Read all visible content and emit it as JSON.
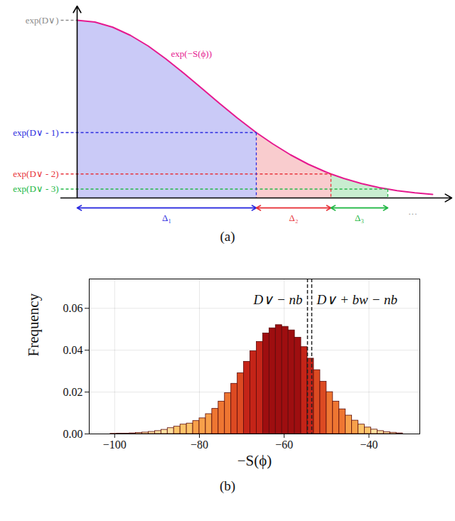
{
  "chart_data": [
    {
      "type": "area",
      "caption": "(a)",
      "annotations": [
        "exp(−S(ϕ))",
        "···"
      ],
      "x": [
        0,
        0.25,
        0.5,
        0.75,
        1,
        1.25,
        1.5,
        1.75,
        2,
        2.25,
        2.5,
        2.52,
        2.75,
        3,
        3.25,
        3.5,
        3.57,
        3.75,
        4,
        4.25,
        4.37,
        4.5,
        4.75,
        5
      ],
      "values": [
        1,
        0.99,
        0.961,
        0.915,
        0.855,
        0.782,
        0.702,
        0.618,
        0.533,
        0.451,
        0.374,
        0.368,
        0.305,
        0.243,
        0.19,
        0.146,
        0.135,
        0.11,
        0.081,
        0.058,
        0.05,
        0.041,
        0.029,
        0.02
      ],
      "color": "#e6198f",
      "xlim": [
        -0.23,
        5.27
      ],
      "ylim": [
        0,
        1.08
      ],
      "yticks": [
        {
          "value": 1,
          "label": "exp(D∨)"
        },
        {
          "value": 0.368,
          "label": "exp(D∨ - 1)"
        },
        {
          "value": 0.135,
          "label": "exp(D∨ - 2)"
        },
        {
          "value": 0.05,
          "label": "exp(D∨ - 3)"
        }
      ],
      "colors": [
        "#8c8c8c",
        "#2b2be0",
        "#e8333a",
        "#22b845"
      ],
      "regions": [
        {
          "name": "Δ₁",
          "from": 0,
          "to": 2.52,
          "color": "#2b2be0"
        },
        {
          "name": "Δ₂",
          "from": 2.52,
          "to": 3.57,
          "color": "#e8333a"
        },
        {
          "name": "Δ₃",
          "from": 3.57,
          "to": 4.37,
          "color": "#22b845"
        }
      ],
      "tick_labels": "y",
      "grid": false
    },
    {
      "type": "histogram",
      "caption": "(b)",
      "xlabel": "−S(ϕ)",
      "ylabel": "Frequency",
      "bins": [
        -101,
        -99.5,
        -98,
        -96.5,
        -95,
        -93.5,
        -92,
        -90.5,
        -89,
        -87.5,
        -86,
        -84.5,
        -83,
        -81.5,
        -80,
        -78.5,
        -77,
        -75.5,
        -74,
        -72.5,
        -71,
        -69.5,
        -68,
        -66.5,
        -65,
        -63.5,
        -62,
        -60.5,
        -59,
        -57.5,
        -56,
        -54.5,
        -53,
        -51.5,
        -50,
        -48.5,
        -47,
        -45.5,
        -44,
        -42.5,
        -41,
        -39.5,
        -38,
        -36.5,
        -35,
        -33.5,
        -32
      ],
      "values": [
        0.0001,
        0.0002,
        0.0002,
        0.0003,
        0.0005,
        0.0007,
        0.001,
        0.0014,
        0.002,
        0.0028,
        0.0035,
        0.0045,
        0.005,
        0.0062,
        0.0075,
        0.0095,
        0.012,
        0.0155,
        0.0195,
        0.024,
        0.029,
        0.0345,
        0.0395,
        0.044,
        0.048,
        0.0505,
        0.052,
        0.0512,
        0.0495,
        0.046,
        0.0415,
        0.036,
        0.0305,
        0.025,
        0.02,
        0.0155,
        0.0118,
        0.0088,
        0.0064,
        0.0045,
        0.0031,
        0.0021,
        0.0014,
        0.0009,
        0.0006,
        0.0003
      ],
      "colors": [
        "#fde0a0",
        "#fde0a0",
        "#fde0a0",
        "#fde0a0",
        "#fde0a0",
        "#fde0a0",
        "#fde0a0",
        "#fde0a0",
        "#fde0a0",
        "#fde0a0",
        "#fcc46a",
        "#fcc46a",
        "#fcc46a",
        "#f7a04a",
        "#f7a04a",
        "#f7a04a",
        "#ee7632",
        "#ee7632",
        "#ee7632",
        "#dc4a22",
        "#dc4a22",
        "#c42418",
        "#c42418",
        "#c42418",
        "#9e0e10",
        "#9e0e10",
        "#9e0e10",
        "#9e0e10",
        "#9e0e10",
        "#9e0e10",
        "#c42418",
        "#c42418",
        "#dc4a22",
        "#dc4a22",
        "#ee7632",
        "#ee7632",
        "#ee7632",
        "#f7a04a",
        "#f7a04a",
        "#fcc46a",
        "#fcc46a",
        "#fde0a0",
        "#fde0a0",
        "#fde0a0",
        "#fde0a0",
        "#fde0a0"
      ],
      "xlim": [
        -106,
        -28
      ],
      "xticks": [
        -100,
        -80,
        -60,
        -40
      ],
      "ylim": [
        0,
        0.074
      ],
      "yticks": [
        {
          "value": 0,
          "label": "0.00"
        },
        {
          "value": 0.02,
          "label": "0.02"
        },
        {
          "value": 0.04,
          "label": "0.04"
        },
        {
          "value": 0.06,
          "label": "0.06"
        }
      ],
      "grid": true,
      "vlines": [
        {
          "x": -54.5,
          "label": "D∨ − nb"
        },
        {
          "x": -53.5,
          "label": "D∨ + bw − nb"
        }
      ]
    }
  ]
}
